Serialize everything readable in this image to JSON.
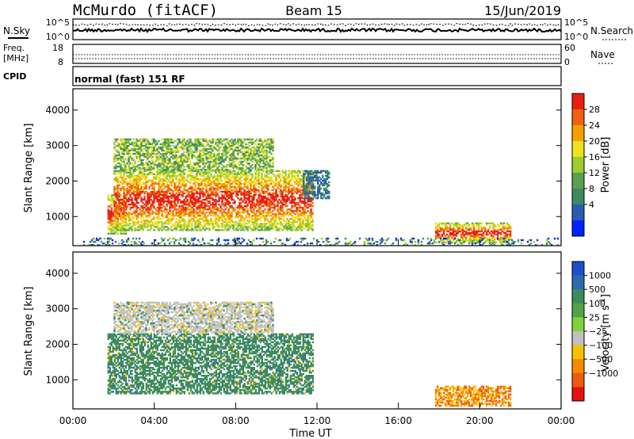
{
  "header": {
    "station": "McMurdo (fitACF)",
    "beam": "Beam 15",
    "date": "15/Jun/2019"
  },
  "noise_panel": {
    "left_label": "N.Sky",
    "right_label": "N.Search",
    "tick_top": "10^5",
    "tick_bottom": "10^0"
  },
  "freq_panel": {
    "left_label_1": "Freq.",
    "left_label_2": "[MHz]",
    "right_label": "Nave",
    "left_tick_top": "18",
    "left_tick_bottom": "8",
    "right_tick_top": "60",
    "right_tick_bottom": "0"
  },
  "cpid": {
    "label": "CPID",
    "text": "normal (fast) 151 RF"
  },
  "chart_data": [
    {
      "type": "heatmap",
      "quantity": "power",
      "ylabel": "Slant Range [km]",
      "yticks": [
        "1000",
        "2000",
        "3000",
        "4000"
      ],
      "ylim": [
        180,
        4600
      ],
      "xlim": [
        0,
        24
      ],
      "colorbar": {
        "label": "Power [dB]",
        "ticks": [
          "4",
          "8",
          "12",
          "16",
          "20",
          "24",
          "28"
        ],
        "colors": [
          "#0022ff",
          "#2a5cb4",
          "#3f8a5f",
          "#5aa050",
          "#9ccd2a",
          "#f0e020",
          "#f5a000",
          "#f06010",
          "#e82010"
        ]
      },
      "echo_regions": [
        {
          "t": [
            1.7,
            2.6
          ],
          "range": [
            500,
            1600
          ],
          "level": "high"
        },
        {
          "t": [
            2.0,
            11.8
          ],
          "range": [
            600,
            2300
          ],
          "level": "high"
        },
        {
          "t": [
            2.0,
            9.8
          ],
          "range": [
            2300,
            3200
          ],
          "level": "medium"
        },
        {
          "t": [
            11.3,
            12.6
          ],
          "range": [
            1500,
            2300
          ],
          "level": "low"
        },
        {
          "t": [
            17.8,
            21.5
          ],
          "range": [
            250,
            800
          ],
          "level": "high"
        },
        {
          "t": [
            0.5,
            23.8
          ],
          "range": [
            180,
            400
          ],
          "level": "ground scatter"
        }
      ]
    },
    {
      "type": "heatmap",
      "quantity": "velocity",
      "xlabel": "Time UT",
      "ylabel": "Slant Range [km]",
      "yticks": [
        "1000",
        "2000",
        "3000",
        "4000"
      ],
      "xticks": [
        "00:00",
        "04:00",
        "08:00",
        "12:00",
        "16:00",
        "20:00",
        "00:00"
      ],
      "ylim": [
        180,
        4600
      ],
      "xlim": [
        0,
        24
      ],
      "colorbar": {
        "label": "Velocity [m s",
        "label_sup": "-1",
        "label_end": "]",
        "ticks": [
          "1000",
          "500",
          "100",
          "25",
          "−25",
          "−100",
          "−500",
          "−1000"
        ],
        "colors": [
          "#1f4fc8",
          "#2c6ab0",
          "#3e8a5c",
          "#52a345",
          "#7fd23a",
          "#c0c0c0",
          "#f6c200",
          "#f58a00",
          "#f05a10",
          "#e81010"
        ]
      },
      "echo_regions": [
        {
          "t": [
            1.7,
            11.8
          ],
          "range": [
            600,
            2300
          ],
          "velocity": "green 100 to 500"
        },
        {
          "t": [
            2.0,
            9.8
          ],
          "range": [
            2300,
            3200
          ],
          "velocity": "grey ground scatter"
        },
        {
          "t": [
            17.8,
            21.5
          ],
          "range": [
            250,
            800
          ],
          "velocity": "orange -100 to -500"
        }
      ]
    }
  ]
}
